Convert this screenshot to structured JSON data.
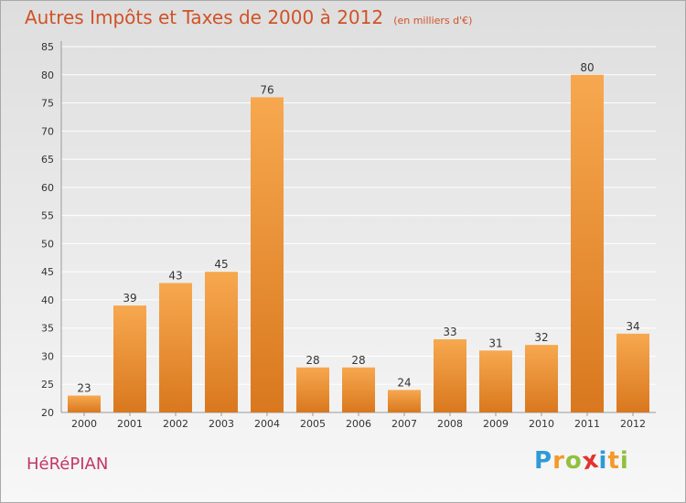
{
  "header": {
    "title": "Autres Impôts et Taxes de 2000 à 2012",
    "subtitle": "(en milliers d'€)"
  },
  "footer": {
    "commune": "HéRéPIAN",
    "logo_letters": [
      {
        "char": "P",
        "color": "#2e9bd6"
      },
      {
        "char": "r",
        "color": "#f39a2a"
      },
      {
        "char": "o",
        "color": "#92c03e"
      },
      {
        "char": "x",
        "color": "#e0342f"
      },
      {
        "char": "i",
        "color": "#2e9bd6"
      },
      {
        "char": "t",
        "color": "#f39a2a"
      },
      {
        "char": "i",
        "color": "#92c03e"
      }
    ]
  },
  "colors": {
    "bar_top": "#f7a84f",
    "bar_bottom": "#d9781e",
    "grid": "#ffffff",
    "title": "#d05226",
    "commune": "#c2376a"
  },
  "chart_data": {
    "type": "bar",
    "categories": [
      "2000",
      "2001",
      "2002",
      "2003",
      "2004",
      "2005",
      "2006",
      "2007",
      "2008",
      "2009",
      "2010",
      "2011",
      "2012"
    ],
    "values": [
      23,
      39,
      43,
      45,
      76,
      28,
      28,
      24,
      33,
      31,
      32,
      80,
      34
    ],
    "title": "Autres Impôts et Taxes de 2000 à 2012",
    "subtitle": "(en milliers d'€)",
    "xlabel": "",
    "ylabel": "",
    "ylim": [
      20,
      85
    ],
    "yticks": [
      20,
      25,
      30,
      35,
      40,
      45,
      50,
      55,
      60,
      65,
      70,
      75,
      80,
      85
    ],
    "grid": true,
    "legend": "none"
  }
}
